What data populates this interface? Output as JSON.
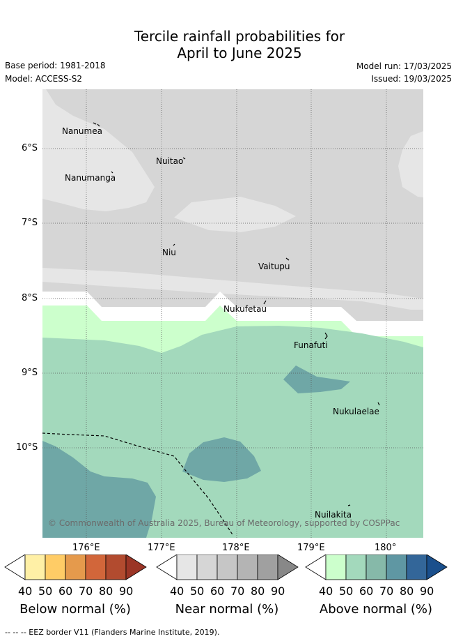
{
  "title_line1": "Tercile rainfall probabilities for",
  "title_line2": "April to June 2025",
  "base_period": "Base period: 1981-2018",
  "model": "Model: ACCESS-S2",
  "model_run": "Model run: 17/03/2025",
  "issued": "Issued: 19/03/2025",
  "places": [
    "Nanumea",
    "Nuitao",
    "Nanumanga",
    "Niu",
    "Vaitupu",
    "Nukufetau",
    "Funafuti",
    "Nukulaelae",
    "Nuilakita"
  ],
  "lat_ticks": [
    "6°S",
    "7°S",
    "8°S",
    "9°S",
    "10°S"
  ],
  "lon_ticks": [
    "176°E",
    "177°E",
    "178°E",
    "179°E",
    "180°"
  ],
  "copyright": "© Commonwealth of Australia 2025, Bureau of Meteorology, supported by COSPPac",
  "colorbars": [
    {
      "label": "Below normal (%)",
      "ticks": [
        "40",
        "50",
        "60",
        "70",
        "80",
        "90"
      ],
      "colors": [
        "#ffffff",
        "#fff0a6",
        "#ffcc66",
        "#e59a4c",
        "#d2663a",
        "#b24b2f",
        "#9b3526"
      ]
    },
    {
      "label": "Near normal (%)",
      "ticks": [
        "40",
        "50",
        "60",
        "70",
        "80",
        "90"
      ],
      "colors": [
        "#ffffff",
        "#e6e6e6",
        "#d6d6d6",
        "#c6c6c6",
        "#b4b4b4",
        "#a0a0a0",
        "#888888"
      ]
    },
    {
      "label": "Above normal (%)",
      "ticks": [
        "40",
        "50",
        "60",
        "70",
        "80",
        "90"
      ],
      "colors": [
        "#ffffff",
        "#ccffcc",
        "#a3d9bc",
        "#86b9a9",
        "#5f97a3",
        "#336699",
        "#1a4f8c"
      ]
    }
  ],
  "footer": "-- -- -- EEZ border V11 (Flanders Marine Institute, 2019)."
}
